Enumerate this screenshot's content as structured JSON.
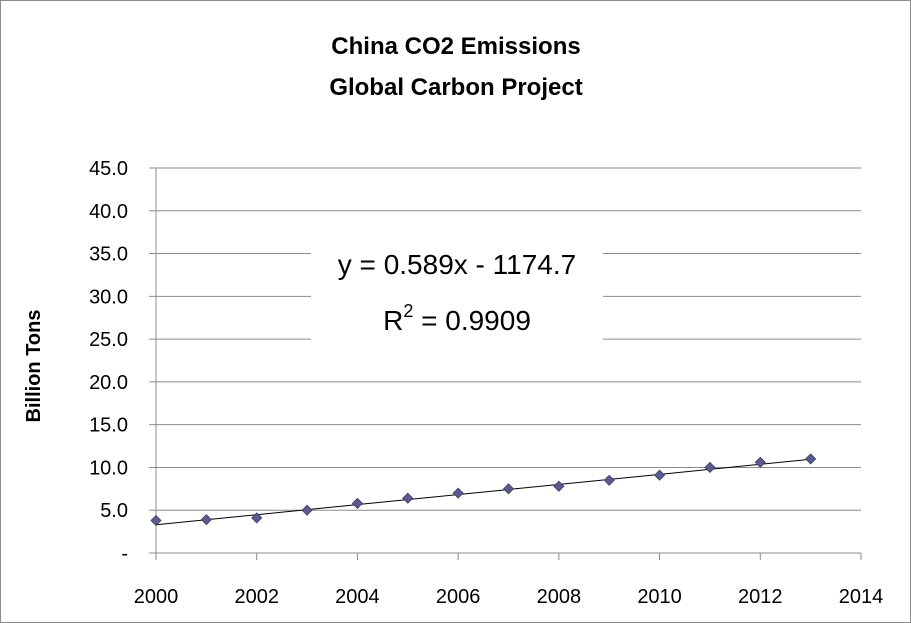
{
  "chart_data": {
    "type": "scatter",
    "title": "China CO2 Emissions",
    "subtitle": "Global Carbon Project",
    "xlabel": "",
    "ylabel": "Billion Tons",
    "xlim": [
      2000,
      2014
    ],
    "ylim": [
      0,
      45
    ],
    "x_ticks": [
      2000,
      2002,
      2004,
      2006,
      2008,
      2010,
      2012,
      2014
    ],
    "y_ticks": [
      0,
      5,
      10,
      15,
      20,
      25,
      30,
      35,
      40,
      45
    ],
    "y_tick_labels": [
      "-",
      "5.0",
      "10.0",
      "15.0",
      "20.0",
      "25.0",
      "30.0",
      "35.0",
      "40.0",
      "45.0"
    ],
    "grid": "horizontal",
    "series": [
      {
        "name": "China CO2 Emissions",
        "marker": "diamond",
        "color": "#5b5b8f",
        "x": [
          2000,
          2001,
          2002,
          2003,
          2004,
          2005,
          2006,
          2007,
          2008,
          2009,
          2010,
          2011,
          2012,
          2013
        ],
        "y": [
          3.8,
          3.9,
          4.1,
          5.0,
          5.8,
          6.4,
          7.0,
          7.5,
          7.8,
          8.5,
          9.1,
          10.0,
          10.6,
          11.0
        ]
      }
    ],
    "trendline": {
      "type": "linear",
      "slope": 0.589,
      "intercept": -1174.7,
      "x_range": [
        2000,
        2013
      ],
      "equation_label": "y = 0.589x - 1174.7",
      "r2_prefix": "R",
      "r2_exponent": "2",
      "r2_value_text": " = 0.9909"
    }
  }
}
